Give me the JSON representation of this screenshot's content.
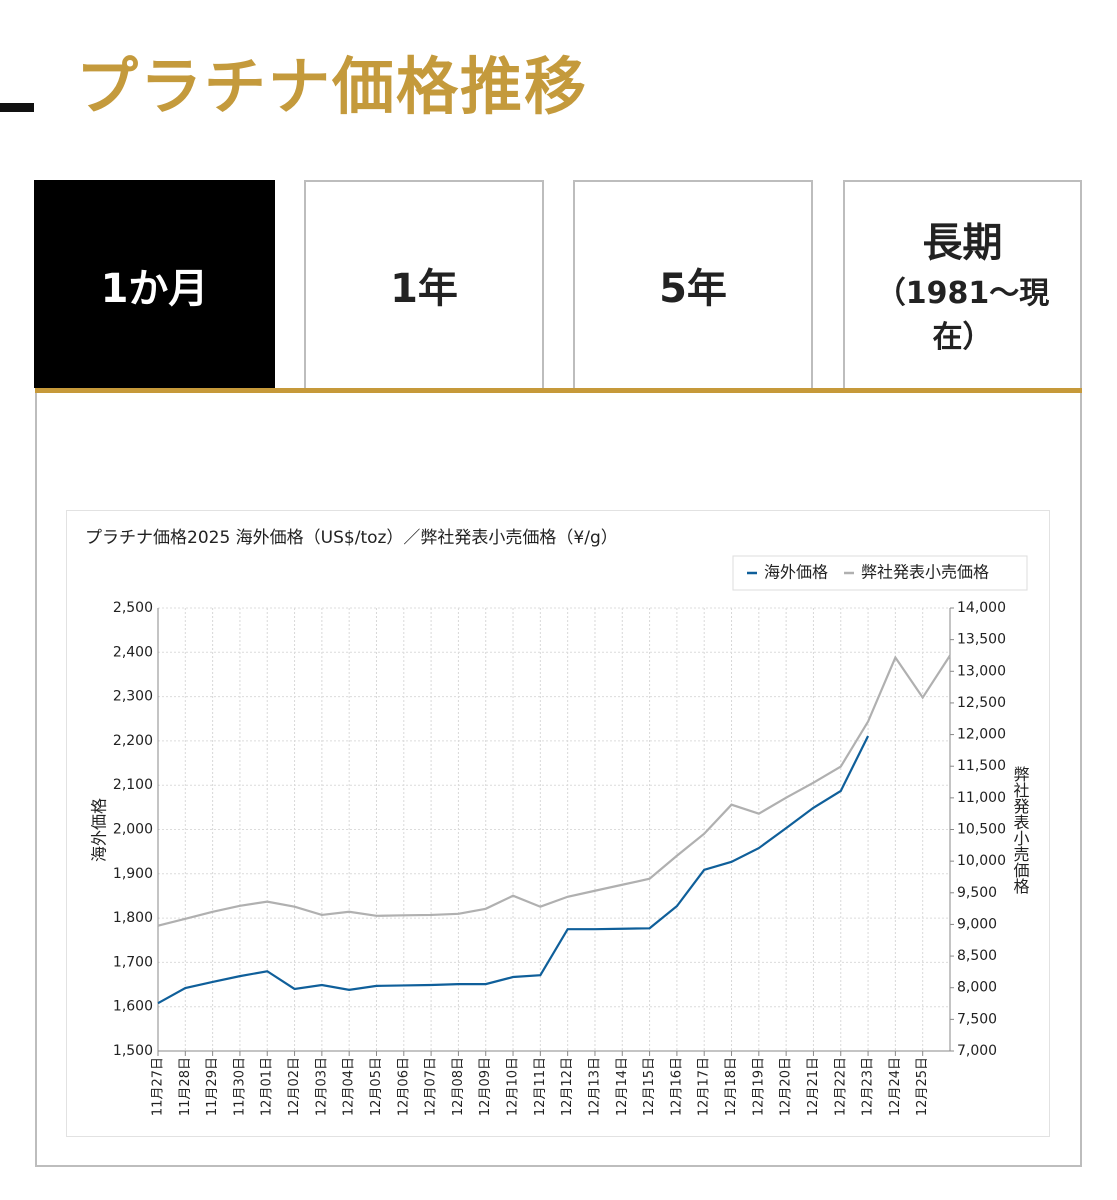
{
  "header": {
    "title": "プラチナ価格推移"
  },
  "tabs": [
    {
      "label": "1か月",
      "active": true
    },
    {
      "label": "1年",
      "active": false
    },
    {
      "label": "5年",
      "active": false
    },
    {
      "label": "長期",
      "sub": "（1981〜現在）",
      "active": false
    }
  ],
  "chart_data": {
    "type": "line",
    "title": "プラチナ価格2025 海外価格（US$/toz）／弊社発表小売価格（¥/g）",
    "y_label": "海外価格",
    "y2_label": "弊社発表小売価格",
    "categories": [
      "11月27日",
      "11月28日",
      "11月29日",
      "11月30日",
      "12月01日",
      "12月02日",
      "12月03日",
      "12月04日",
      "12月05日",
      "12月06日",
      "12月07日",
      "12月08日",
      "12月09日",
      "12月10日",
      "12月11日",
      "12月12日",
      "12月13日",
      "12月14日",
      "12月15日",
      "12月16日",
      "12月17日",
      "12月18日",
      "12月19日",
      "12月20日",
      "12月21日",
      "12月22日",
      "12月23日",
      "12月24日",
      "12月25日",
      null
    ],
    "series": [
      {
        "name": "海外価格",
        "color": "#0f5f9a",
        "values": [
          1608,
          1642,
          1656,
          1669,
          1680,
          1640,
          1649,
          1638,
          1647,
          1648,
          1649,
          1651,
          1651,
          1667,
          1671,
          1775,
          1775,
          1776,
          1777,
          1827,
          1909,
          1927,
          1958,
          2003,
          2049,
          2087,
          2211,
          null,
          null,
          null
        ]
      },
      {
        "name": "弊社発表小売価格",
        "color": "#b0b0b0",
        "axis": "y2",
        "values": [
          8980,
          9089,
          9200,
          9294,
          9360,
          9280,
          9150,
          9200,
          9136,
          9144,
          9150,
          9168,
          9247,
          9453,
          9280,
          9437,
          9532,
          9627,
          9722,
          10085,
          10433,
          10892,
          10750,
          11003,
          11240,
          11494,
          12206,
          13218,
          12585,
          13250
        ]
      }
    ],
    "ylim": [
      1500,
      2500
    ],
    "yticks": [
      {
        "value": 1500,
        "label": "1,500"
      },
      {
        "value": 1600,
        "label": "1,600"
      },
      {
        "value": 1700,
        "label": "1,700"
      },
      {
        "value": 1800,
        "label": "1,800"
      },
      {
        "value": 1900,
        "label": "1,900"
      },
      {
        "value": 2000,
        "label": "2,000"
      },
      {
        "value": 2100,
        "label": "2,100"
      },
      {
        "value": 2200,
        "label": "2,200"
      },
      {
        "value": 2300,
        "label": "2,300"
      },
      {
        "value": 2400,
        "label": "2,400"
      },
      {
        "value": 2500,
        "label": "2,500"
      }
    ],
    "y2lim": [
      7000,
      14000
    ],
    "y2ticks": [
      {
        "value": 7000,
        "label": "7,000"
      },
      {
        "value": 7500,
        "label": "7,500"
      },
      {
        "value": 8000,
        "label": "8,000"
      },
      {
        "value": 8500,
        "label": "8,500"
      },
      {
        "value": 9000,
        "label": "9,000"
      },
      {
        "value": 9500,
        "label": "9,500"
      },
      {
        "value": 10000,
        "label": "10,000"
      },
      {
        "value": 10500,
        "label": "10,500"
      },
      {
        "value": 11000,
        "label": "11,000"
      },
      {
        "value": 11500,
        "label": "11,500"
      },
      {
        "value": 12000,
        "label": "12,000"
      },
      {
        "value": 12500,
        "label": "12,500"
      },
      {
        "value": 13000,
        "label": "13,000"
      },
      {
        "value": 13500,
        "label": "13,500"
      },
      {
        "value": 14000,
        "label": "14,000"
      }
    ],
    "grid": true,
    "legend": "top-right"
  }
}
